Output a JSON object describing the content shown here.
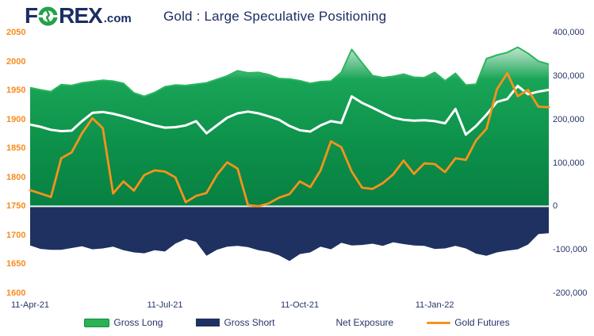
{
  "header": {
    "logo": {
      "f": "F",
      "rex": "REX",
      "tld": ".com"
    },
    "title": "Gold : Large Speculative Positioning"
  },
  "colors": {
    "brand_navy": "#1b2d63",
    "brand_green": "#23a24b",
    "area_green_top_line": "#2cb55e",
    "area_green_mid": "#0d9049",
    "area_navy": "#1e3160",
    "line_white": "#ffffff",
    "line_orange": "#f6921e",
    "axis_left_text": "#f68b1f",
    "axis_right_text": "#253469",
    "zero_line": "#e9f6ee"
  },
  "chart_data": {
    "type": "area+line combo (weekly)",
    "title": "Gold : Large Speculative Positioning",
    "grid": "off",
    "legend_position": "bottom-center",
    "x_ticks": [
      {
        "label": "11-Apr-21",
        "week": 0
      },
      {
        "label": "11-Jul-21",
        "week": 13
      },
      {
        "label": "11-Oct-21",
        "week": 26
      },
      {
        "label": "11-Jan-22",
        "week": 39
      }
    ],
    "axes": {
      "left": {
        "applies_to": "Gold Futures price",
        "min": 1600,
        "max": 2050,
        "ticks": [
          2050,
          2000,
          1950,
          1900,
          1850,
          1800,
          1750,
          1700,
          1650,
          1600
        ]
      },
      "right": {
        "applies_to": "Positioning (contracts)",
        "min": -200000,
        "max": 400000,
        "ticks": [
          400000,
          300000,
          200000,
          100000,
          0,
          -100000,
          -200000
        ]
      }
    },
    "series": [
      {
        "name": "Gross Long",
        "type": "area",
        "axis": "right",
        "color": "#2bb253",
        "values": [
          273000,
          268000,
          264000,
          280000,
          278000,
          284000,
          287000,
          290000,
          288000,
          283000,
          261000,
          253000,
          262000,
          275000,
          279000,
          278000,
          281000,
          284000,
          292000,
          300000,
          312000,
          307000,
          308000,
          303000,
          294000,
          293000,
          289000,
          283000,
          287000,
          288000,
          308000,
          361000,
          330000,
          301000,
          296000,
          299000,
          304000,
          297000,
          296000,
          308000,
          289000,
          306000,
          279000,
          281000,
          340000,
          348000,
          354000,
          366000,
          352000,
          334000,
          327000
        ]
      },
      {
        "name": "Gross Short",
        "type": "area",
        "axis": "right",
        "color": "#1e3160",
        "values": [
          -90000,
          -98000,
          -100000,
          -100000,
          -96000,
          -92000,
          -99000,
          -97000,
          -93000,
          -101000,
          -106000,
          -108000,
          -101000,
          -104000,
          -86000,
          -75000,
          -82000,
          -114000,
          -100000,
          -93000,
          -91000,
          -94000,
          -101000,
          -105000,
          -113000,
          -126000,
          -110000,
          -106000,
          -93000,
          -99000,
          -84000,
          -90000,
          -89000,
          -86000,
          -91000,
          -83000,
          -87000,
          -90000,
          -91000,
          -98000,
          -97000,
          -91000,
          -97000,
          -109000,
          -114000,
          -106000,
          -102000,
          -99000,
          -88000,
          -64000,
          -62000
        ]
      },
      {
        "name": "Net Exposure",
        "type": "line",
        "axis": "right",
        "color": "#ffffff",
        "values": [
          188000,
          183000,
          176000,
          173000,
          174000,
          196000,
          215000,
          217000,
          213000,
          207000,
          200000,
          193000,
          186000,
          181000,
          182000,
          186000,
          196000,
          168000,
          186000,
          204000,
          214000,
          218000,
          214000,
          207000,
          199000,
          185000,
          175000,
          172000,
          186000,
          196000,
          192000,
          253000,
          238000,
          227000,
          215000,
          204000,
          199000,
          197000,
          198000,
          196000,
          191000,
          224000,
          165000,
          185000,
          211000,
          240000,
          247000,
          277000,
          258000,
          264000,
          268000
        ]
      },
      {
        "name": "Gold Futures",
        "type": "line",
        "axis": "left",
        "color": "#f6921e",
        "values": [
          1778,
          1772,
          1766,
          1833,
          1843,
          1876,
          1902,
          1885,
          1772,
          1793,
          1777,
          1804,
          1812,
          1810,
          1800,
          1757,
          1768,
          1773,
          1804,
          1826,
          1815,
          1752,
          1750,
          1755,
          1765,
          1771,
          1793,
          1783,
          1812,
          1862,
          1852,
          1810,
          1782,
          1780,
          1790,
          1805,
          1829,
          1806,
          1824,
          1823,
          1809,
          1833,
          1830,
          1864,
          1884,
          1952,
          1980,
          1940,
          1951,
          1922,
          1921
        ]
      }
    ]
  }
}
